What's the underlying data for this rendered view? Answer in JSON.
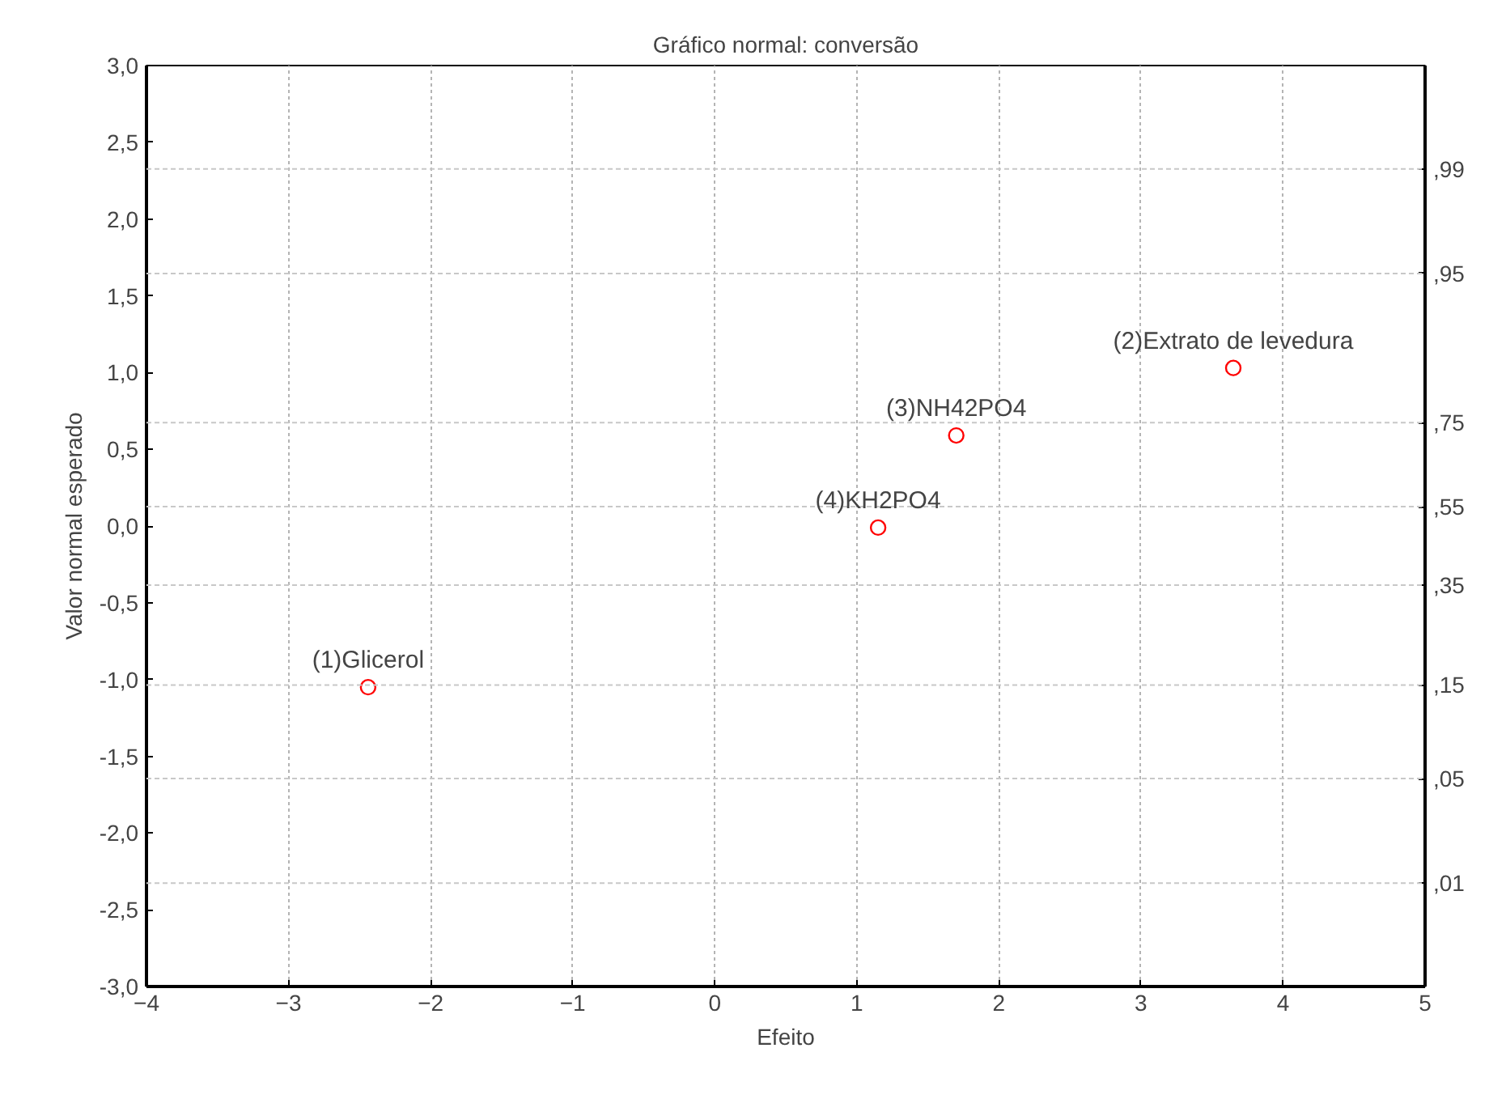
{
  "chart_data": {
    "type": "scatter",
    "title": "Gráfico normal: conversão",
    "xlabel": "Efeito",
    "ylabel": "Valor normal esperado",
    "x": [
      -2.44,
      3.65,
      1.7,
      1.15
    ],
    "series": [
      {
        "color": "#ff0000",
        "values": [
          -1.05,
          1.03,
          0.59,
          -0.01
        ]
      }
    ],
    "marker": "circle",
    "annotations": [
      {
        "text": "(1)Glicerol",
        "x": -2.44,
        "y": -1.05
      },
      {
        "text": "(2)Extrato de levedura",
        "x": 3.65,
        "y": 1.03
      },
      {
        "text": "(3)NH42PO4",
        "x": 1.7,
        "y": 0.59
      },
      {
        "text": "(4)KH2PO4",
        "x": 1.15,
        "y": -0.01
      },
      {
        "text": ",99",
        "x": 5,
        "y": 2.326
      },
      {
        "text": ",95",
        "x": 5,
        "y": 1.645
      },
      {
        "text": ",75",
        "x": 5,
        "y": 0.674
      },
      {
        "text": ",55",
        "x": 5,
        "y": 0.126
      },
      {
        "text": ",35",
        "x": 5,
        "y": -0.385
      },
      {
        "text": ",15",
        "x": 5,
        "y": -1.036
      },
      {
        "text": ",05",
        "x": 5,
        "y": -1.645
      },
      {
        "text": ",01",
        "x": 5,
        "y": -2.326
      }
    ],
    "xlim": [
      -4,
      5
    ],
    "xticks": [
      -4,
      -3,
      -2,
      -1,
      0,
      1,
      2,
      3,
      4,
      5
    ],
    "ylim": [
      -3,
      3
    ],
    "yticks": [
      {
        "value": -3,
        "label": "-3,0"
      },
      {
        "value": -2.5,
        "label": "-2,5"
      },
      {
        "value": -2,
        "label": "-2,0"
      },
      {
        "value": -1.5,
        "label": "-1,5"
      },
      {
        "value": -1,
        "label": "-1,0"
      },
      {
        "value": -0.5,
        "label": "-0,5"
      },
      {
        "value": 0,
        "label": "0,0"
      },
      {
        "value": 0.5,
        "label": "0,5"
      },
      {
        "value": 1,
        "label": "1,0"
      },
      {
        "value": 1.5,
        "label": "1,5"
      },
      {
        "value": 2,
        "label": "2,0"
      },
      {
        "value": 2.5,
        "label": "2,5"
      },
      {
        "value": 3,
        "label": "3,0"
      }
    ],
    "ref_lines": [
      {
        "axis": "y",
        "value": 2.326,
        "color": "#c8c8c8",
        "line_style": "dashed"
      },
      {
        "axis": "y",
        "value": 1.645,
        "color": "#c8c8c8",
        "line_style": "dashed"
      },
      {
        "axis": "y",
        "value": 0.674,
        "color": "#c8c8c8",
        "line_style": "dashed"
      },
      {
        "axis": "y",
        "value": 0.126,
        "color": "#c8c8c8",
        "line_style": "dashed"
      },
      {
        "axis": "y",
        "value": -0.385,
        "color": "#c8c8c8",
        "line_style": "dashed"
      },
      {
        "axis": "y",
        "value": -1.036,
        "color": "#c8c8c8",
        "line_style": "dashed"
      },
      {
        "axis": "y",
        "value": -1.645,
        "color": "#c8c8c8",
        "line_style": "dashed"
      },
      {
        "axis": "y",
        "value": -2.326,
        "color": "#c8c8c8",
        "line_style": "dashed"
      }
    ],
    "grid": "x"
  }
}
